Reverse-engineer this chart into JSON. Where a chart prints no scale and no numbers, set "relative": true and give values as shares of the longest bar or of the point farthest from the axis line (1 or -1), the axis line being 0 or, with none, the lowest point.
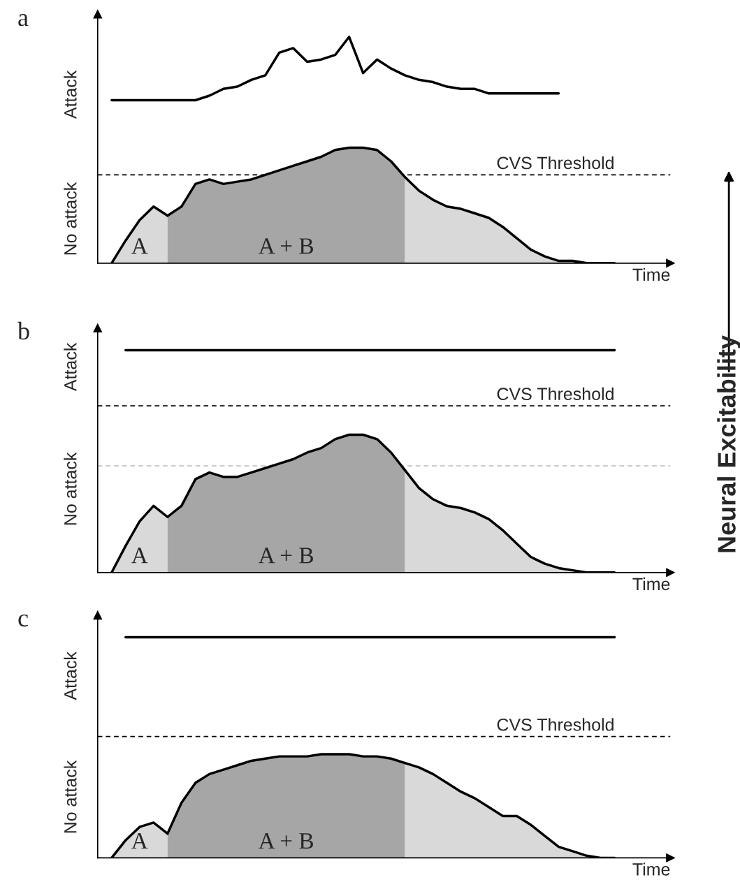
{
  "chart_data": [
    {
      "type": "area",
      "title": "a",
      "xlabel": "Time",
      "relative": true,
      "legend": false,
      "categories": [
        null,
        null,
        null,
        null,
        null,
        null,
        null,
        null,
        null,
        null,
        null,
        null,
        null,
        null,
        null,
        null,
        null,
        null,
        null,
        null,
        null,
        null,
        null,
        null,
        null,
        null,
        null,
        null,
        null,
        null,
        null,
        null,
        null,
        null,
        null,
        null,
        null
      ],
      "annotations": [
        "Attack",
        "No attack"
      ],
      "ref_lines": [
        {
          "axis": "y",
          "value": 0.39,
          "label": "CVS Threshold",
          "color": "#000000",
          "line_style": "dashed"
        }
      ],
      "series": [
        {
          "name": "A",
          "color": "#d9d9d9",
          "values": [
            0,
            0.1,
            0.19,
            0.25,
            0.21,
            null,
            null,
            null,
            null,
            null,
            null,
            null,
            null,
            null,
            null,
            null,
            null,
            null,
            null,
            null,
            null,
            null,
            null,
            null,
            null,
            null,
            null,
            null,
            null,
            null,
            null,
            null,
            null,
            null,
            null,
            null,
            null
          ]
        },
        {
          "name": "A + B",
          "color": "#a6a6a6",
          "values": [
            null,
            null,
            null,
            null,
            0.21,
            0.25,
            0.35,
            0.37,
            0.35,
            0.36,
            0.37,
            0.39,
            0.41,
            0.43,
            0.45,
            0.47,
            0.5,
            0.51,
            0.51,
            0.5,
            0.45,
            0.38,
            null,
            null,
            null,
            null,
            null,
            null,
            null,
            null,
            null,
            null,
            null,
            null,
            null,
            null,
            null
          ]
        },
        {
          "color": "#d9d9d9",
          "values": [
            null,
            null,
            null,
            null,
            null,
            null,
            null,
            null,
            null,
            null,
            null,
            null,
            null,
            null,
            null,
            null,
            null,
            null,
            null,
            null,
            null,
            0.38,
            0.32,
            0.28,
            0.25,
            0.24,
            0.22,
            0.2,
            0.16,
            0.11,
            0.06,
            0.03,
            0.01,
            0.01,
            0,
            0,
            0
          ]
        },
        {
          "type": "line",
          "color": "#000000",
          "values": [
            0.72,
            0.72,
            0.72,
            0.72,
            0.72,
            0.72,
            0.72,
            0.74,
            0.77,
            0.78,
            0.81,
            0.83,
            0.93,
            0.95,
            0.89,
            0.9,
            0.92,
            1,
            0.84,
            0.9,
            0.86,
            0.83,
            0.81,
            0.8,
            0.78,
            0.77,
            0.77,
            0.75,
            0.75,
            0.75,
            0.75,
            0.75,
            0.75,
            null,
            null,
            null,
            null
          ]
        }
      ]
    },
    {
      "type": "area",
      "title": "b",
      "xlabel": "Time",
      "y2label": "Neural Excitability",
      "relative": true,
      "legend": false,
      "categories": [
        null,
        null,
        null,
        null,
        null,
        null,
        null,
        null,
        null,
        null,
        null,
        null,
        null,
        null,
        null,
        null,
        null,
        null,
        null,
        null,
        null,
        null,
        null,
        null,
        null,
        null,
        null,
        null,
        null,
        null,
        null,
        null,
        null,
        null,
        null,
        null,
        null
      ],
      "annotations": [
        "Attack",
        "No attack"
      ],
      "ref_lines": [
        {
          "axis": "y",
          "value": 0.75,
          "label": "CVS Threshold",
          "color": "#000000",
          "line_style": "dashed"
        },
        {
          "axis": "y",
          "value": 0.48,
          "color": "#bfbfbf",
          "line_style": "dashed"
        }
      ],
      "series": [
        {
          "name": "A",
          "color": "#d9d9d9",
          "values": [
            0,
            0.12,
            0.23,
            0.3,
            0.25,
            null,
            null,
            null,
            null,
            null,
            null,
            null,
            null,
            null,
            null,
            null,
            null,
            null,
            null,
            null,
            null,
            null,
            null,
            null,
            null,
            null,
            null,
            null,
            null,
            null,
            null,
            null,
            null,
            null,
            null,
            null,
            null
          ]
        },
        {
          "name": "A + B",
          "color": "#a6a6a6",
          "values": [
            null,
            null,
            null,
            null,
            0.25,
            0.3,
            0.42,
            0.45,
            0.43,
            0.43,
            0.45,
            0.47,
            0.49,
            0.51,
            0.54,
            0.56,
            0.6,
            0.62,
            0.62,
            0.6,
            0.54,
            0.46,
            null,
            null,
            null,
            null,
            null,
            null,
            null,
            null,
            null,
            null,
            null,
            null,
            null,
            null,
            null
          ]
        },
        {
          "color": "#d9d9d9",
          "values": [
            null,
            null,
            null,
            null,
            null,
            null,
            null,
            null,
            null,
            null,
            null,
            null,
            null,
            null,
            null,
            null,
            null,
            null,
            null,
            null,
            null,
            0.46,
            0.38,
            0.33,
            0.3,
            0.29,
            0.27,
            0.24,
            0.19,
            0.13,
            0.07,
            0.04,
            0.02,
            0.01,
            0,
            0,
            0
          ]
        },
        {
          "type": "line",
          "color": "#000000",
          "values": [
            null,
            1,
            1,
            1,
            1,
            1,
            1,
            1,
            1,
            1,
            1,
            1,
            1,
            1,
            1,
            1,
            1,
            1,
            1,
            1,
            1,
            1,
            1,
            1,
            1,
            1,
            1,
            1,
            1,
            1,
            1,
            1,
            1,
            1,
            1,
            1,
            1
          ]
        }
      ]
    },
    {
      "type": "area",
      "title": "c",
      "xlabel": "Time",
      "relative": true,
      "legend": false,
      "categories": [
        null,
        null,
        null,
        null,
        null,
        null,
        null,
        null,
        null,
        null,
        null,
        null,
        null,
        null,
        null,
        null,
        null,
        null,
        null,
        null,
        null,
        null,
        null,
        null,
        null,
        null,
        null,
        null,
        null,
        null,
        null,
        null,
        null,
        null,
        null,
        null,
        null
      ],
      "annotations": [
        "Attack",
        "No attack"
      ],
      "ref_lines": [
        {
          "axis": "y",
          "value": 0.55,
          "label": "CVS Threshold",
          "color": "#000000",
          "line_style": "dashed"
        }
      ],
      "series": [
        {
          "name": "A",
          "color": "#d9d9d9",
          "values": [
            0,
            0.08,
            0.14,
            0.16,
            0.11,
            null,
            null,
            null,
            null,
            null,
            null,
            null,
            null,
            null,
            null,
            null,
            null,
            null,
            null,
            null,
            null,
            null,
            null,
            null,
            null,
            null,
            null,
            null,
            null,
            null,
            null,
            null,
            null,
            null,
            null,
            null,
            null
          ]
        },
        {
          "name": "A + B",
          "color": "#a6a6a6",
          "values": [
            null,
            null,
            null,
            null,
            0.11,
            0.25,
            0.34,
            0.38,
            0.4,
            0.42,
            0.44,
            0.45,
            0.46,
            0.46,
            0.46,
            0.47,
            0.47,
            0.47,
            0.46,
            0.46,
            0.45,
            0.43,
            null,
            null,
            null,
            null,
            null,
            null,
            null,
            null,
            null,
            null,
            null,
            null,
            null,
            null,
            null
          ]
        },
        {
          "color": "#d9d9d9",
          "values": [
            null,
            null,
            null,
            null,
            null,
            null,
            null,
            null,
            null,
            null,
            null,
            null,
            null,
            null,
            null,
            null,
            null,
            null,
            null,
            null,
            null,
            0.43,
            0.41,
            0.38,
            0.34,
            0.3,
            0.27,
            0.23,
            0.19,
            0.19,
            0.15,
            0.1,
            0.05,
            0.03,
            0.01,
            0,
            0
          ]
        },
        {
          "type": "line",
          "color": "#000000",
          "values": [
            null,
            1,
            1,
            1,
            1,
            1,
            1,
            1,
            1,
            1,
            1,
            1,
            1,
            1,
            1,
            1,
            1,
            1,
            1,
            1,
            1,
            1,
            1,
            1,
            1,
            1,
            1,
            1,
            1,
            1,
            1,
            1,
            1,
            1,
            1,
            1,
            1
          ]
        }
      ]
    }
  ]
}
